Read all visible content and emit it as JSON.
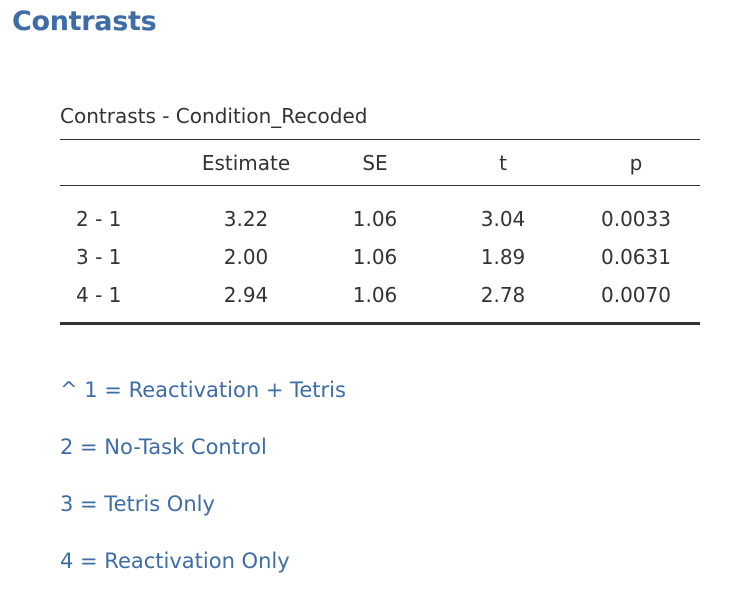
{
  "heading": "Contrasts",
  "table": {
    "title": "Contrasts - Condition_Recoded",
    "columns": [
      "",
      "Estimate",
      "SE",
      "t",
      "p"
    ],
    "rows": [
      [
        "2 - 1",
        "3.22",
        "1.06",
        "3.04",
        "0.0033"
      ],
      [
        "3 - 1",
        "2.00",
        "1.06",
        "1.89",
        "0.0631"
      ],
      [
        "4 - 1",
        "2.94",
        "1.06",
        "2.78",
        "0.0070"
      ]
    ]
  },
  "notes": [
    "^ 1 = Reactivation + Tetris",
    "2 = No-Task Control",
    "3 = Tetris Only",
    "4 = Reactivation Only"
  ],
  "colors": {
    "heading": "#3e6da6",
    "text": "#333333",
    "notes": "#3e6da6"
  }
}
